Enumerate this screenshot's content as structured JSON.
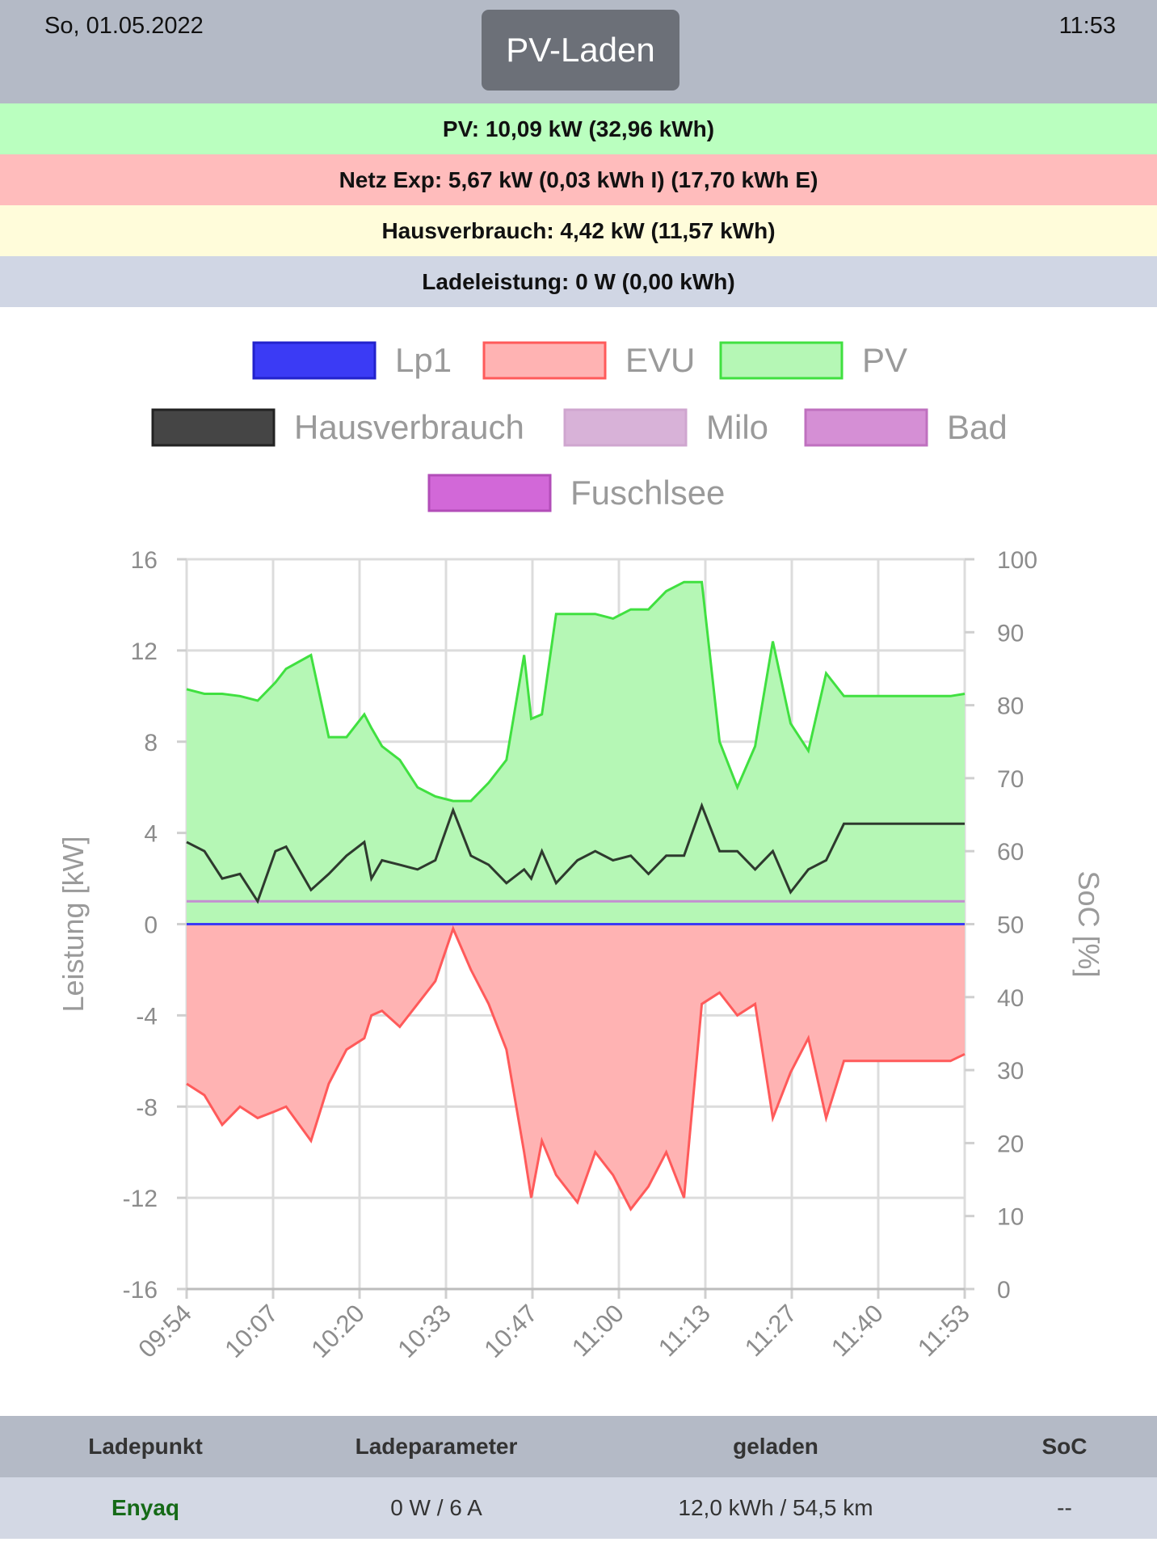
{
  "header": {
    "date": "So, 01.05.2022",
    "time": "11:53",
    "mode_button": "PV-Laden"
  },
  "stats": {
    "pv": "PV: 10,09 kW (32,96 kWh)",
    "grid": "Netz Exp: 5,67 kW (0,03 kWh I) (17,70 kWh E)",
    "house": "Hausverbrauch: 4,42 kW (11,57 kWh)",
    "charging": "Ladeleistung: 0 W (0,00 kWh)"
  },
  "colors": {
    "lp1": "#3b3bf5",
    "evu": "#ff5a5a",
    "pv": "#40e040",
    "hausverbrauch": "#2e3a2e",
    "milo": "#d8b2d8",
    "bad": "#d58fd5",
    "fuschlsee": "#d268d8"
  },
  "chart_data": {
    "type": "line",
    "legend": [
      "Lp1",
      "EVU",
      "PV",
      "Hausverbrauch",
      "Milo",
      "Bad",
      "Fuschlsee"
    ],
    "legend_position": "top",
    "ylabel": "Leistung [kW]",
    "y2label": "SoC [%]",
    "ylim": [
      -16,
      16
    ],
    "y2lim": [
      0,
      100
    ],
    "yticks": [
      "16",
      "12",
      "8",
      "4",
      "0",
      "-4",
      "-8",
      "-12",
      "-16"
    ],
    "y2ticks": [
      "100",
      "90",
      "80",
      "70",
      "60",
      "50",
      "40",
      "30",
      "20",
      "10",
      "0"
    ],
    "xticks": [
      "09:54",
      "10:07",
      "10:20",
      "10:33",
      "10:47",
      "11:00",
      "11:13",
      "11:27",
      "11:40",
      "11:53"
    ],
    "x_minutes": [
      0,
      5,
      10,
      15,
      20,
      25,
      28,
      35,
      40,
      45,
      50,
      52,
      55,
      60,
      65,
      70,
      75,
      80,
      85,
      90,
      95,
      97,
      100,
      104,
      110,
      115,
      120,
      125,
      130,
      135,
      140,
      145,
      150,
      155,
      160,
      165,
      170,
      175,
      180,
      185,
      190,
      195,
      200,
      205,
      210,
      215,
      219
    ],
    "series": [
      {
        "name": "PV",
        "values": [
          10.3,
          10.1,
          10.1,
          10.0,
          9.8,
          10.6,
          11.2,
          11.8,
          8.2,
          8.2,
          9.2,
          8.6,
          7.8,
          7.2,
          6.0,
          5.6,
          5.4,
          5.4,
          6.2,
          7.2,
          11.8,
          9.0,
          9.2,
          13.6,
          13.6,
          13.6,
          13.4,
          13.8,
          13.8,
          14.6,
          15.0,
          15.0,
          8.0,
          6.0,
          7.8,
          12.4,
          8.8,
          7.6,
          11.0,
          10.0,
          10.0,
          10.0,
          10.0,
          10.0,
          10.0,
          10.0,
          10.1
        ]
      },
      {
        "name": "EVU",
        "values": [
          -7.0,
          -7.5,
          -8.8,
          -8.0,
          -8.5,
          -8.2,
          -8.0,
          -9.5,
          -7.0,
          -5.5,
          -5.0,
          -4.0,
          -3.8,
          -4.5,
          -3.5,
          -2.5,
          -0.2,
          -2.0,
          -3.5,
          -5.5,
          -10.0,
          -12.0,
          -9.5,
          -11.0,
          -12.2,
          -10.0,
          -11.0,
          -12.5,
          -11.5,
          -10.0,
          -12.0,
          -3.5,
          -3.0,
          -4.0,
          -3.5,
          -8.5,
          -6.5,
          -5.0,
          -8.5,
          -6.0,
          -6.0,
          -6.0,
          -6.0,
          -6.0,
          -6.0,
          -6.0,
          -5.7
        ]
      },
      {
        "name": "Hausverbrauch",
        "values": [
          3.6,
          3.2,
          2.0,
          2.2,
          1.0,
          3.2,
          3.4,
          1.5,
          2.2,
          3.0,
          3.6,
          2.0,
          2.8,
          2.6,
          2.4,
          2.8,
          5.0,
          3.0,
          2.6,
          1.8,
          2.4,
          2.0,
          3.2,
          1.8,
          2.8,
          3.2,
          2.8,
          3.0,
          2.2,
          3.0,
          3.0,
          5.2,
          3.2,
          3.2,
          2.4,
          3.2,
          1.4,
          2.4,
          2.8,
          4.4,
          4.4,
          4.4,
          4.4,
          4.4,
          4.4,
          4.4,
          4.4
        ]
      },
      {
        "name": "Milo",
        "values": [
          1.0,
          1.0,
          1.0,
          1.0,
          1.0,
          1.0,
          1.0,
          1.0,
          1.0,
          1.0,
          1.0,
          1.0,
          1.0,
          1.0,
          1.0,
          1.0,
          1.0,
          1.0,
          1.0,
          1.0,
          1.0,
          1.0,
          1.0,
          1.0,
          1.0,
          1.0,
          1.0,
          1.0,
          1.0,
          1.0,
          1.0,
          1.0,
          1.0,
          1.0,
          1.0,
          1.0,
          1.0,
          1.0,
          1.0,
          1.0,
          1.0,
          1.0,
          1.0,
          1.0,
          1.0,
          1.0,
          1.0
        ]
      },
      {
        "name": "Lp1",
        "values": [
          0,
          0,
          0,
          0,
          0,
          0,
          0,
          0,
          0,
          0,
          0,
          0,
          0,
          0,
          0,
          0,
          0,
          0,
          0,
          0,
          0,
          0,
          0,
          0,
          0,
          0,
          0,
          0,
          0,
          0,
          0,
          0,
          0,
          0,
          0,
          0,
          0,
          0,
          0,
          0,
          0,
          0,
          0,
          0,
          0,
          0,
          0
        ]
      }
    ]
  },
  "table": {
    "headers": [
      "Ladepunkt",
      "Ladeparameter",
      "geladen",
      "SoC"
    ],
    "rows": [
      {
        "name": "Enyaq",
        "params": "0 W / 6 A",
        "charged": "12,0 kWh / 54,5 km",
        "soc": "--"
      }
    ]
  }
}
